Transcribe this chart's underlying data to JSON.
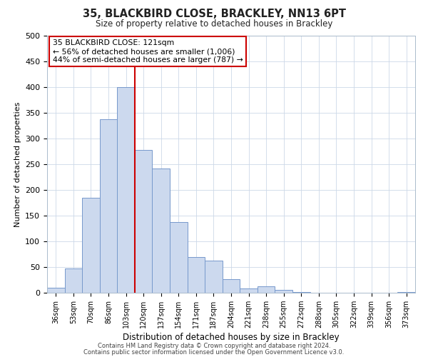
{
  "title": "35, BLACKBIRD CLOSE, BRACKLEY, NN13 6PT",
  "subtitle": "Size of property relative to detached houses in Brackley",
  "xlabel": "Distribution of detached houses by size in Brackley",
  "ylabel": "Number of detached properties",
  "bin_labels": [
    "36sqm",
    "53sqm",
    "70sqm",
    "86sqm",
    "103sqm",
    "120sqm",
    "137sqm",
    "154sqm",
    "171sqm",
    "187sqm",
    "204sqm",
    "221sqm",
    "238sqm",
    "255sqm",
    "272sqm",
    "288sqm",
    "305sqm",
    "322sqm",
    "339sqm",
    "356sqm",
    "373sqm"
  ],
  "bar_heights": [
    10,
    47,
    185,
    338,
    400,
    278,
    242,
    137,
    70,
    62,
    26,
    8,
    12,
    5,
    2,
    0,
    0,
    0,
    0,
    0,
    2
  ],
  "bar_color": "#ccd9ee",
  "bar_edge_color": "#7799cc",
  "vline_position": 5,
  "vline_color": "#cc0000",
  "ylim": [
    0,
    500
  ],
  "yticks": [
    0,
    50,
    100,
    150,
    200,
    250,
    300,
    350,
    400,
    450,
    500
  ],
  "annotation_line1": "35 BLACKBIRD CLOSE: 121sqm",
  "annotation_line2": "← 56% of detached houses are smaller (1,006)",
  "annotation_line3": "44% of semi-detached houses are larger (787) →",
  "annotation_box_fc": "#ffffff",
  "annotation_box_ec": "#cc0000",
  "grid_color": "#ccd8e8",
  "background_color": "#ffffff",
  "footer_line1": "Contains HM Land Registry data © Crown copyright and database right 2024.",
  "footer_line2": "Contains public sector information licensed under the Open Government Licence v3.0."
}
